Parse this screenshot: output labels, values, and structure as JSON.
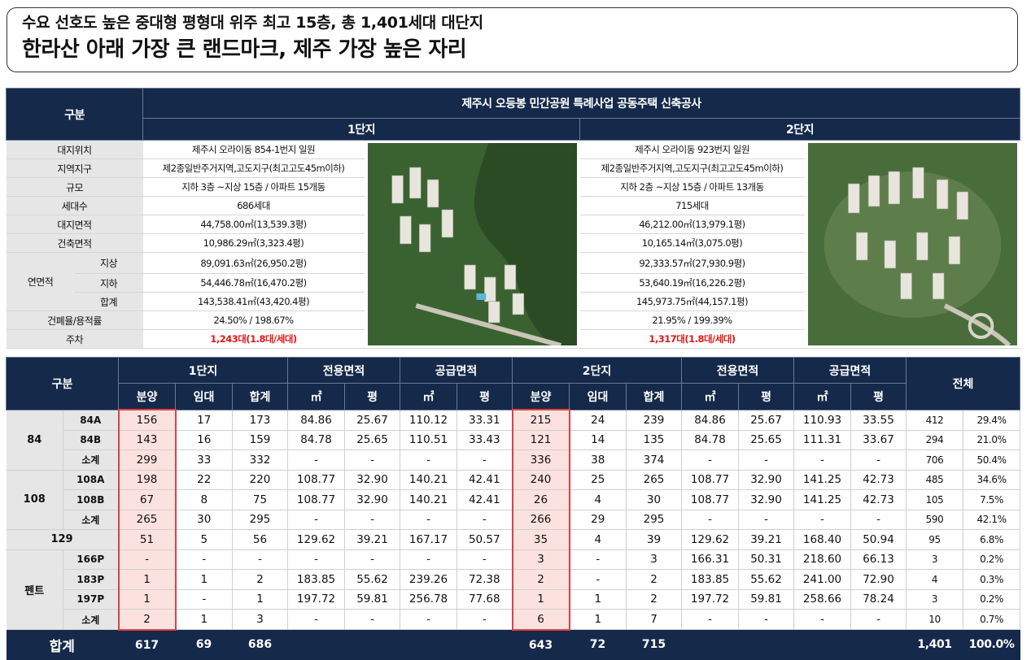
{
  "headline": {
    "line1": "수요 선호도 높은 중대형 평형대 위주 최고 15층, 총 1,401세대 대단지",
    "line2": "한라산 아래 가장 큰 랜드마크, 제주 가장 높은 자리"
  },
  "overview": {
    "label_header": "구분",
    "project_title": "제주시 오등봉 민간공원 특례사업 공동주택 신축공사",
    "complex1": "1단지",
    "complex2": "2단지",
    "rows": [
      {
        "label": "대지위치",
        "c1": "제주시 오라이동 854-1번지 일원",
        "c2": "제주시 오라이동 923번지 일원"
      },
      {
        "label": "지역지구",
        "c1": "제2종일반주거지역,고도지구(최고고도45m이하)",
        "c2": "제2종일반주거지역,고도지구(최고고도45m이하)"
      },
      {
        "label": "규모",
        "c1": "지하 3층 ~지상 15층 / 아파트 15개동",
        "c2": "지하 2층 ~지상 15층 / 아파트 13개동"
      },
      {
        "label": "세대수",
        "c1": "686세대",
        "c2": "715세대"
      },
      {
        "label": "대지면적",
        "c1": "44,758.00㎡(13,539.3평)",
        "c2": "46,212.00㎡(13,979.1평)"
      },
      {
        "label": "건축면적",
        "c1": "10,986.29㎡(3,323.4평)",
        "c2": "10,165.14㎡(3,075.0평)"
      }
    ],
    "floor_area_label": "연면적",
    "floor_rows": [
      {
        "label": "지상",
        "c1": "89,091.63㎡(26,950.2평)",
        "c2": "92,333.57㎡(27,930.9평)"
      },
      {
        "label": "지하",
        "c1": "54,446.78㎡(16,470.2평)",
        "c2": "53,640.19㎡(16,226.2평)"
      },
      {
        "label": "합계",
        "c1": "143,538.41㎡(43,420.4평)",
        "c2": "145,973.75㎡(44,157.1평)"
      }
    ],
    "ratio": {
      "label": "건폐율/용적률",
      "c1": "24.50% / 198.67%",
      "c2": "21.95% / 199.39%"
    },
    "parking": {
      "label": "주차",
      "c1": "1,243대(1.8대/세대)",
      "c2": "1,317대(1.8대/세대)"
    }
  },
  "units": {
    "label_header": "구분",
    "complex1": "1단지",
    "complex2": "2단지",
    "exclusive": "전용면적",
    "supply": "공급면적",
    "total": "전체",
    "sub_sale": "분양",
    "sub_rent": "임대",
    "sub_sum": "합계",
    "sub_m2": "㎡",
    "sub_py": "평",
    "groups": [
      {
        "name": "84",
        "rows": [
          {
            "type": "84A",
            "v": [
              "156",
              "17",
              "173",
              "84.86",
              "25.67",
              "110.12",
              "33.31",
              "215",
              "24",
              "239",
              "84.86",
              "25.67",
              "110.93",
              "33.55",
              "412",
              "29.4%"
            ]
          },
          {
            "type": "84B",
            "v": [
              "143",
              "16",
              "159",
              "84.78",
              "25.65",
              "110.51",
              "33.43",
              "121",
              "14",
              "135",
              "84.78",
              "25.65",
              "111.31",
              "33.67",
              "294",
              "21.0%"
            ]
          },
          {
            "type": "소계",
            "v": [
              "299",
              "33",
              "332",
              "-",
              "-",
              "-",
              "-",
              "336",
              "38",
              "374",
              "-",
              "-",
              "-",
              "-",
              "706",
              "50.4%"
            ]
          }
        ]
      },
      {
        "name": "108",
        "rows": [
          {
            "type": "108A",
            "v": [
              "198",
              "22",
              "220",
              "108.77",
              "32.90",
              "140.21",
              "42.41",
              "240",
              "25",
              "265",
              "108.77",
              "32.90",
              "141.25",
              "42.73",
              "485",
              "34.6%"
            ]
          },
          {
            "type": "108B",
            "v": [
              "67",
              "8",
              "75",
              "108.77",
              "32.90",
              "140.21",
              "42.41",
              "26",
              "4",
              "30",
              "108.77",
              "32.90",
              "141.25",
              "42.73",
              "105",
              "7.5%"
            ]
          },
          {
            "type": "소계",
            "v": [
              "265",
              "30",
              "295",
              "-",
              "-",
              "-",
              "-",
              "266",
              "29",
              "295",
              "-",
              "-",
              "-",
              "-",
              "590",
              "42.1%"
            ]
          }
        ]
      },
      {
        "name": "129",
        "rows": [
          {
            "type": "",
            "v": [
              "51",
              "5",
              "56",
              "129.62",
              "39.21",
              "167.17",
              "50.57",
              "35",
              "4",
              "39",
              "129.62",
              "39.21",
              "168.40",
              "50.94",
              "95",
              "6.8%"
            ]
          }
        ]
      },
      {
        "name": "펜트",
        "rows": [
          {
            "type": "166P",
            "v": [
              "-",
              "-",
              "-",
              "-",
              "-",
              "-",
              "-",
              "3",
              "-",
              "3",
              "166.31",
              "50.31",
              "218.60",
              "66.13",
              "3",
              "0.2%"
            ]
          },
          {
            "type": "183P",
            "v": [
              "1",
              "1",
              "2",
              "183.85",
              "55.62",
              "239.26",
              "72.38",
              "2",
              "-",
              "2",
              "183.85",
              "55.62",
              "241.00",
              "72.90",
              "4",
              "0.3%"
            ]
          },
          {
            "type": "197P",
            "v": [
              "1",
              "-",
              "1",
              "197.72",
              "59.81",
              "256.78",
              "77.68",
              "1",
              "1",
              "2",
              "197.72",
              "59.81",
              "258.66",
              "78.24",
              "3",
              "0.2%"
            ]
          },
          {
            "type": "소계",
            "v": [
              "2",
              "1",
              "3",
              "-",
              "-",
              "-",
              "-",
              "6",
              "1",
              "7",
              "-",
              "-",
              "-",
              "-",
              "10",
              "0.7%"
            ]
          }
        ]
      }
    ],
    "total_row": {
      "label": "합계",
      "v": [
        "617",
        "69",
        "686",
        "",
        "",
        "",
        "",
        "643",
        "72",
        "715",
        "",
        "",
        "",
        "",
        "1,401",
        "100.0%"
      ]
    }
  }
}
